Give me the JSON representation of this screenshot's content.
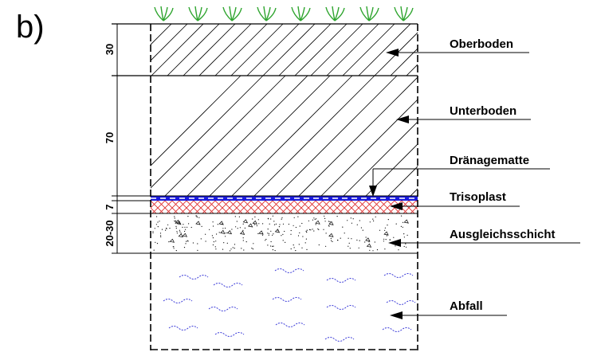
{
  "figure_label": "b)",
  "layers": [
    {
      "label": "Oberboden"
    },
    {
      "label": "Unterboden"
    },
    {
      "label": "Dränagematte"
    },
    {
      "label": "Trisoplast"
    },
    {
      "label": "Ausgleichsschicht"
    },
    {
      "label": "Abfall"
    }
  ],
  "dimensions": [
    {
      "label": "30"
    },
    {
      "label": "70"
    },
    {
      "label": "7"
    },
    {
      "label": "20-30"
    }
  ],
  "colors": {
    "line": "#000000",
    "grass": "#2fa52f",
    "drainage": "#1a1adc",
    "trisoplast": "#e03030",
    "waste_waves": "#3a3ad8"
  }
}
